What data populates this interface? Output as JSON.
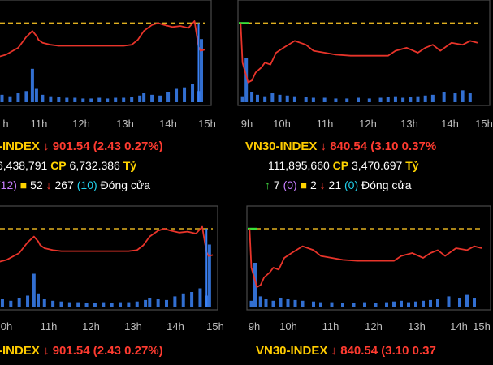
{
  "colors": {
    "price_line": "#e8342a",
    "reference": "#e0b020",
    "volume": "#3b82f6",
    "open_marker": "#39e339",
    "name": "#ffcc00",
    "down": "#ff3b30",
    "up": "#3fd13f",
    "ceiling": "#c77dff",
    "unchanged": "#ffd400",
    "floor": "#22d3ee"
  },
  "chart_data": [
    {
      "type": "line",
      "id": "tl",
      "x_ticks": [
        "11h",
        "12h",
        "13h",
        "14h",
        "15h"
      ],
      "x_edge_tick": "h",
      "x_range": [
        9.75,
        15.0
      ],
      "y_range": [
        0,
        100
      ],
      "reference": 80,
      "series": [
        {
          "x": [
            9.75,
            10.1,
            10.4,
            10.6,
            10.75,
            10.85,
            10.9,
            11.0,
            11.2,
            11.4,
            11.6,
            11.8,
            12.2,
            12.6,
            13.0,
            13.2,
            13.35,
            13.5,
            13.7,
            13.85,
            14.0,
            14.2,
            14.4,
            14.6,
            14.75,
            14.85,
            14.9,
            15.0
          ],
          "y": [
            44,
            48,
            55,
            66,
            72,
            67,
            63,
            60,
            58,
            57,
            57,
            57,
            57,
            57,
            57,
            58,
            63,
            72,
            78,
            80,
            78,
            76,
            77,
            75,
            82,
            56,
            52,
            53
          ]
        }
      ],
      "volume": [
        {
          "x": [
            9.85,
            10.0,
            10.2,
            10.4,
            10.6,
            10.75,
            10.85,
            11.0,
            11.2,
            11.4,
            11.6,
            11.8,
            12.0,
            12.2,
            12.4,
            12.6,
            12.8,
            13.0,
            13.2,
            13.4,
            13.5,
            13.7,
            13.9,
            14.1,
            14.3,
            14.5,
            14.7,
            14.85,
            14.92
          ],
          "v": [
            6,
            10,
            8,
            12,
            15,
            45,
            18,
            10,
            8,
            7,
            6,
            6,
            5,
            5,
            6,
            5,
            6,
            6,
            7,
            9,
            12,
            10,
            9,
            14,
            18,
            20,
            25,
            15,
            85
          ]
        }
      ],
      "ticker": {
        "name": "-INDEX",
        "arrow": "↓",
        "value": "901.54",
        "change": "(2.43 0.27%)"
      },
      "volume_line": {
        "prefix": "6,438,791",
        "cp_label": "CP",
        "cp_value": "6,732.386",
        "unit": "Tỷ"
      },
      "breadth": {
        "ceiling": "(12)",
        "unchanged_icon": "■",
        "unchanged": "52",
        "down_icon": "↓",
        "down": "267",
        "floor": "(10)",
        "status": "Đóng cửa"
      }
    },
    {
      "type": "line",
      "id": "tr",
      "x_ticks": [
        "9h",
        "10h",
        "11h",
        "12h",
        "13h",
        "14h",
        "15h"
      ],
      "x_range": [
        9.0,
        15.4
      ],
      "y_range": [
        0,
        100
      ],
      "reference": 80,
      "series": [
        {
          "x": [
            9.1,
            9.25,
            9.35,
            9.45,
            9.6,
            9.7,
            9.85,
            10.0,
            10.2,
            10.5,
            10.8,
            11.0,
            11.3,
            11.6,
            12.0,
            12.4,
            12.8,
            13.0,
            13.2,
            13.5,
            13.8,
            14.0,
            14.2,
            14.4,
            14.7,
            15.0,
            15.2,
            15.4
          ],
          "y": [
            40,
            20,
            22,
            30,
            35,
            40,
            38,
            50,
            55,
            62,
            58,
            52,
            50,
            48,
            47,
            47,
            47,
            47,
            52,
            55,
            50,
            55,
            58,
            52,
            60,
            58,
            62,
            60
          ]
        }
      ],
      "volume": [
        {
          "x": [
            9.1,
            9.2,
            9.35,
            9.5,
            9.7,
            9.9,
            10.1,
            10.3,
            10.5,
            10.8,
            11.0,
            11.3,
            11.6,
            11.9,
            12.2,
            12.5,
            12.8,
            13.0,
            13.2,
            13.4,
            13.6,
            13.8,
            14.0,
            14.2,
            14.5,
            14.8,
            15.0,
            15.2
          ],
          "v": [
            8,
            60,
            14,
            10,
            8,
            12,
            10,
            9,
            8,
            7,
            6,
            6,
            5,
            5,
            6,
            5,
            6,
            7,
            8,
            6,
            7,
            8,
            9,
            10,
            14,
            12,
            16,
            12
          ]
        }
      ],
      "ticker": {
        "name": "VN30-INDEX",
        "arrow": "↓",
        "value": "840.54",
        "change": "(3.10 0.37%"
      },
      "volume_line": {
        "prefix": "111,895,660",
        "cp_label": "CP",
        "cp_value": "3,470.697",
        "unit": "Tỷ"
      },
      "breadth": {
        "up_icon": "↑",
        "up": "7",
        "ceiling": "(0)",
        "unchanged_icon": "■",
        "unchanged": "2",
        "down_icon": "↓",
        "down": "21",
        "floor": "(0)",
        "status": "Đóng cửa"
      }
    },
    {
      "type": "line",
      "id": "bl",
      "x_ticks": [
        "0h",
        "11h",
        "12h",
        "13h",
        "14h",
        "15h"
      ],
      "x_range": [
        9.75,
        15.0
      ],
      "y_range": [
        0,
        100
      ],
      "reference": 80,
      "series": [
        {
          "x": [
            9.75,
            10.1,
            10.4,
            10.6,
            10.75,
            10.85,
            10.9,
            11.0,
            11.2,
            11.4,
            11.6,
            11.8,
            12.2,
            12.6,
            13.0,
            13.2,
            13.35,
            13.5,
            13.7,
            13.85,
            14.0,
            14.2,
            14.4,
            14.6,
            14.75,
            14.85,
            14.9,
            15.0
          ],
          "y": [
            44,
            48,
            55,
            66,
            72,
            67,
            63,
            60,
            58,
            57,
            57,
            57,
            57,
            57,
            57,
            58,
            63,
            72,
            78,
            80,
            78,
            76,
            77,
            75,
            82,
            56,
            52,
            53
          ]
        }
      ],
      "volume": [
        {
          "x": [
            9.85,
            10.0,
            10.2,
            10.4,
            10.6,
            10.75,
            10.85,
            11.0,
            11.2,
            11.4,
            11.6,
            11.8,
            12.0,
            12.2,
            12.4,
            12.6,
            12.8,
            13.0,
            13.2,
            13.4,
            13.5,
            13.7,
            13.9,
            14.1,
            14.3,
            14.5,
            14.7,
            14.85,
            14.92
          ],
          "v": [
            6,
            10,
            8,
            12,
            15,
            45,
            18,
            10,
            8,
            7,
            6,
            6,
            5,
            5,
            6,
            5,
            6,
            6,
            7,
            9,
            12,
            10,
            9,
            14,
            18,
            20,
            25,
            15,
            85
          ]
        }
      ],
      "ticker": {
        "name": "-INDEX",
        "arrow": "↓",
        "value": "901.54",
        "change": "(2.43 0.27%)"
      }
    },
    {
      "type": "line",
      "id": "br",
      "x_ticks": [
        "9h",
        "10h",
        "11h",
        "12h",
        "13h",
        "14h",
        "15h"
      ],
      "x_range": [
        9.0,
        15.4
      ],
      "y_range": [
        0,
        100
      ],
      "reference": 80,
      "series": [
        {
          "x": [
            9.1,
            9.25,
            9.35,
            9.45,
            9.6,
            9.7,
            9.85,
            10.0,
            10.2,
            10.5,
            10.8,
            11.0,
            11.3,
            11.6,
            12.0,
            12.4,
            12.8,
            13.0,
            13.2,
            13.5,
            13.8,
            14.0,
            14.2,
            14.4,
            14.7,
            15.0,
            15.2,
            15.4
          ],
          "y": [
            40,
            20,
            22,
            30,
            35,
            40,
            38,
            50,
            55,
            62,
            58,
            52,
            50,
            48,
            47,
            47,
            47,
            47,
            52,
            55,
            50,
            55,
            58,
            52,
            60,
            58,
            62,
            60
          ]
        }
      ],
      "volume": [
        {
          "x": [
            9.1,
            9.2,
            9.35,
            9.5,
            9.7,
            9.9,
            10.1,
            10.3,
            10.5,
            10.8,
            11.0,
            11.3,
            11.6,
            11.9,
            12.2,
            12.5,
            12.8,
            13.0,
            13.2,
            13.4,
            13.6,
            13.8,
            14.0,
            14.2,
            14.5,
            14.8,
            15.0,
            15.2
          ],
          "v": [
            8,
            60,
            14,
            10,
            8,
            12,
            10,
            9,
            8,
            7,
            6,
            6,
            5,
            5,
            6,
            5,
            6,
            7,
            8,
            6,
            7,
            8,
            9,
            10,
            14,
            12,
            16,
            12
          ]
        }
      ],
      "ticker": {
        "name": "VN30-INDEX",
        "arrow": "↓",
        "value": "840.54",
        "change": "(3.10 0.37"
      }
    }
  ]
}
